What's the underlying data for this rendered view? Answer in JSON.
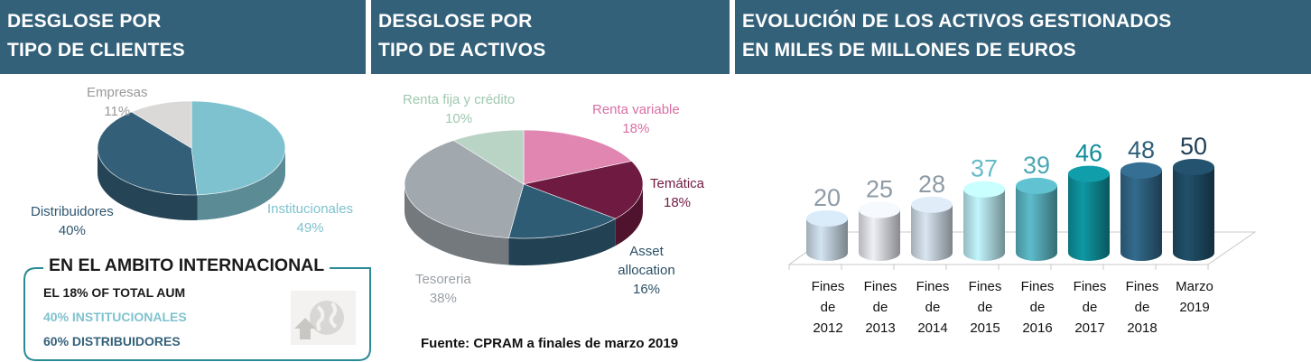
{
  "headers": {
    "clients": [
      "DESGLOSE POR",
      "TIPO DE CLIENTES"
    ],
    "assets": [
      "DESGLOSE POR",
      "TIPO DE ACTIVOS"
    ],
    "evolution": [
      "EVOLUCIÓN DE LOS ACTIVOS GESTIONADOS",
      "EN MILES DE MILLONES DE EUROS"
    ]
  },
  "international": {
    "title": "EN EL AMBITO INTERNACIONAL",
    "line1": "EL 18% OF TOTAL AUM",
    "line2": "40% INSTITUCIONALES",
    "line3": "60% DISTRIBUIDORES"
  },
  "source": "Fuente: CPRAM a finales de marzo 2019",
  "colors": {
    "header_bg": "#34617a",
    "institucionales": "#7fc2cf",
    "distribuidores": "#345f78",
    "empresas": "#dad9d7",
    "renta_variable": "#e186b0",
    "tematica": "#6f1a40",
    "asset_allocation": "#2f5c75",
    "tesoreria": "#a1a8ae",
    "renta_fija": "#b9d3c4",
    "teal_text": "#2a9aa8"
  },
  "chart_data": [
    {
      "type": "pie",
      "labels": [
        "Institucionales",
        "Distribuidores",
        "Empresas"
      ],
      "values": [
        49,
        40,
        11
      ],
      "value_labels": [
        "49%",
        "40%",
        "11%"
      ]
    },
    {
      "type": "pie",
      "labels": [
        "Renta variable",
        "Temática",
        "Asset allocation",
        "Tesoreria",
        "Renta fija y crédito"
      ],
      "values": [
        18,
        18,
        16,
        38,
        10
      ],
      "value_labels": [
        "18%",
        "18%",
        "16%",
        "38%",
        "10%"
      ]
    },
    {
      "type": "bar",
      "categories": [
        [
          "Fines",
          "de",
          "2012"
        ],
        [
          "Fines",
          "de",
          "2013"
        ],
        [
          "Fines",
          "de",
          "2014"
        ],
        [
          "Fines",
          "de",
          "2015"
        ],
        [
          "Fines",
          "de",
          "2016"
        ],
        [
          "Fines",
          "de",
          "2017"
        ],
        [
          "Fines",
          "de",
          "2018"
        ],
        [
          "Marzo",
          "2019"
        ]
      ],
      "values": [
        20,
        25,
        28,
        37,
        39,
        46,
        48,
        50
      ],
      "bar_colors": [
        "#c3d3df",
        "#dcdee3",
        "#c8d4de",
        "#b4e4ea",
        "#57aebb",
        "#0e8d98",
        "#2f6383",
        "#1f4a63"
      ],
      "label_colors": [
        "#8e9ba6",
        "#8e9ba6",
        "#8e9ba6",
        "#63bcc7",
        "#4aa8b4",
        "#0e8d98",
        "#2f5f7a",
        "#1f3f55"
      ]
    }
  ]
}
